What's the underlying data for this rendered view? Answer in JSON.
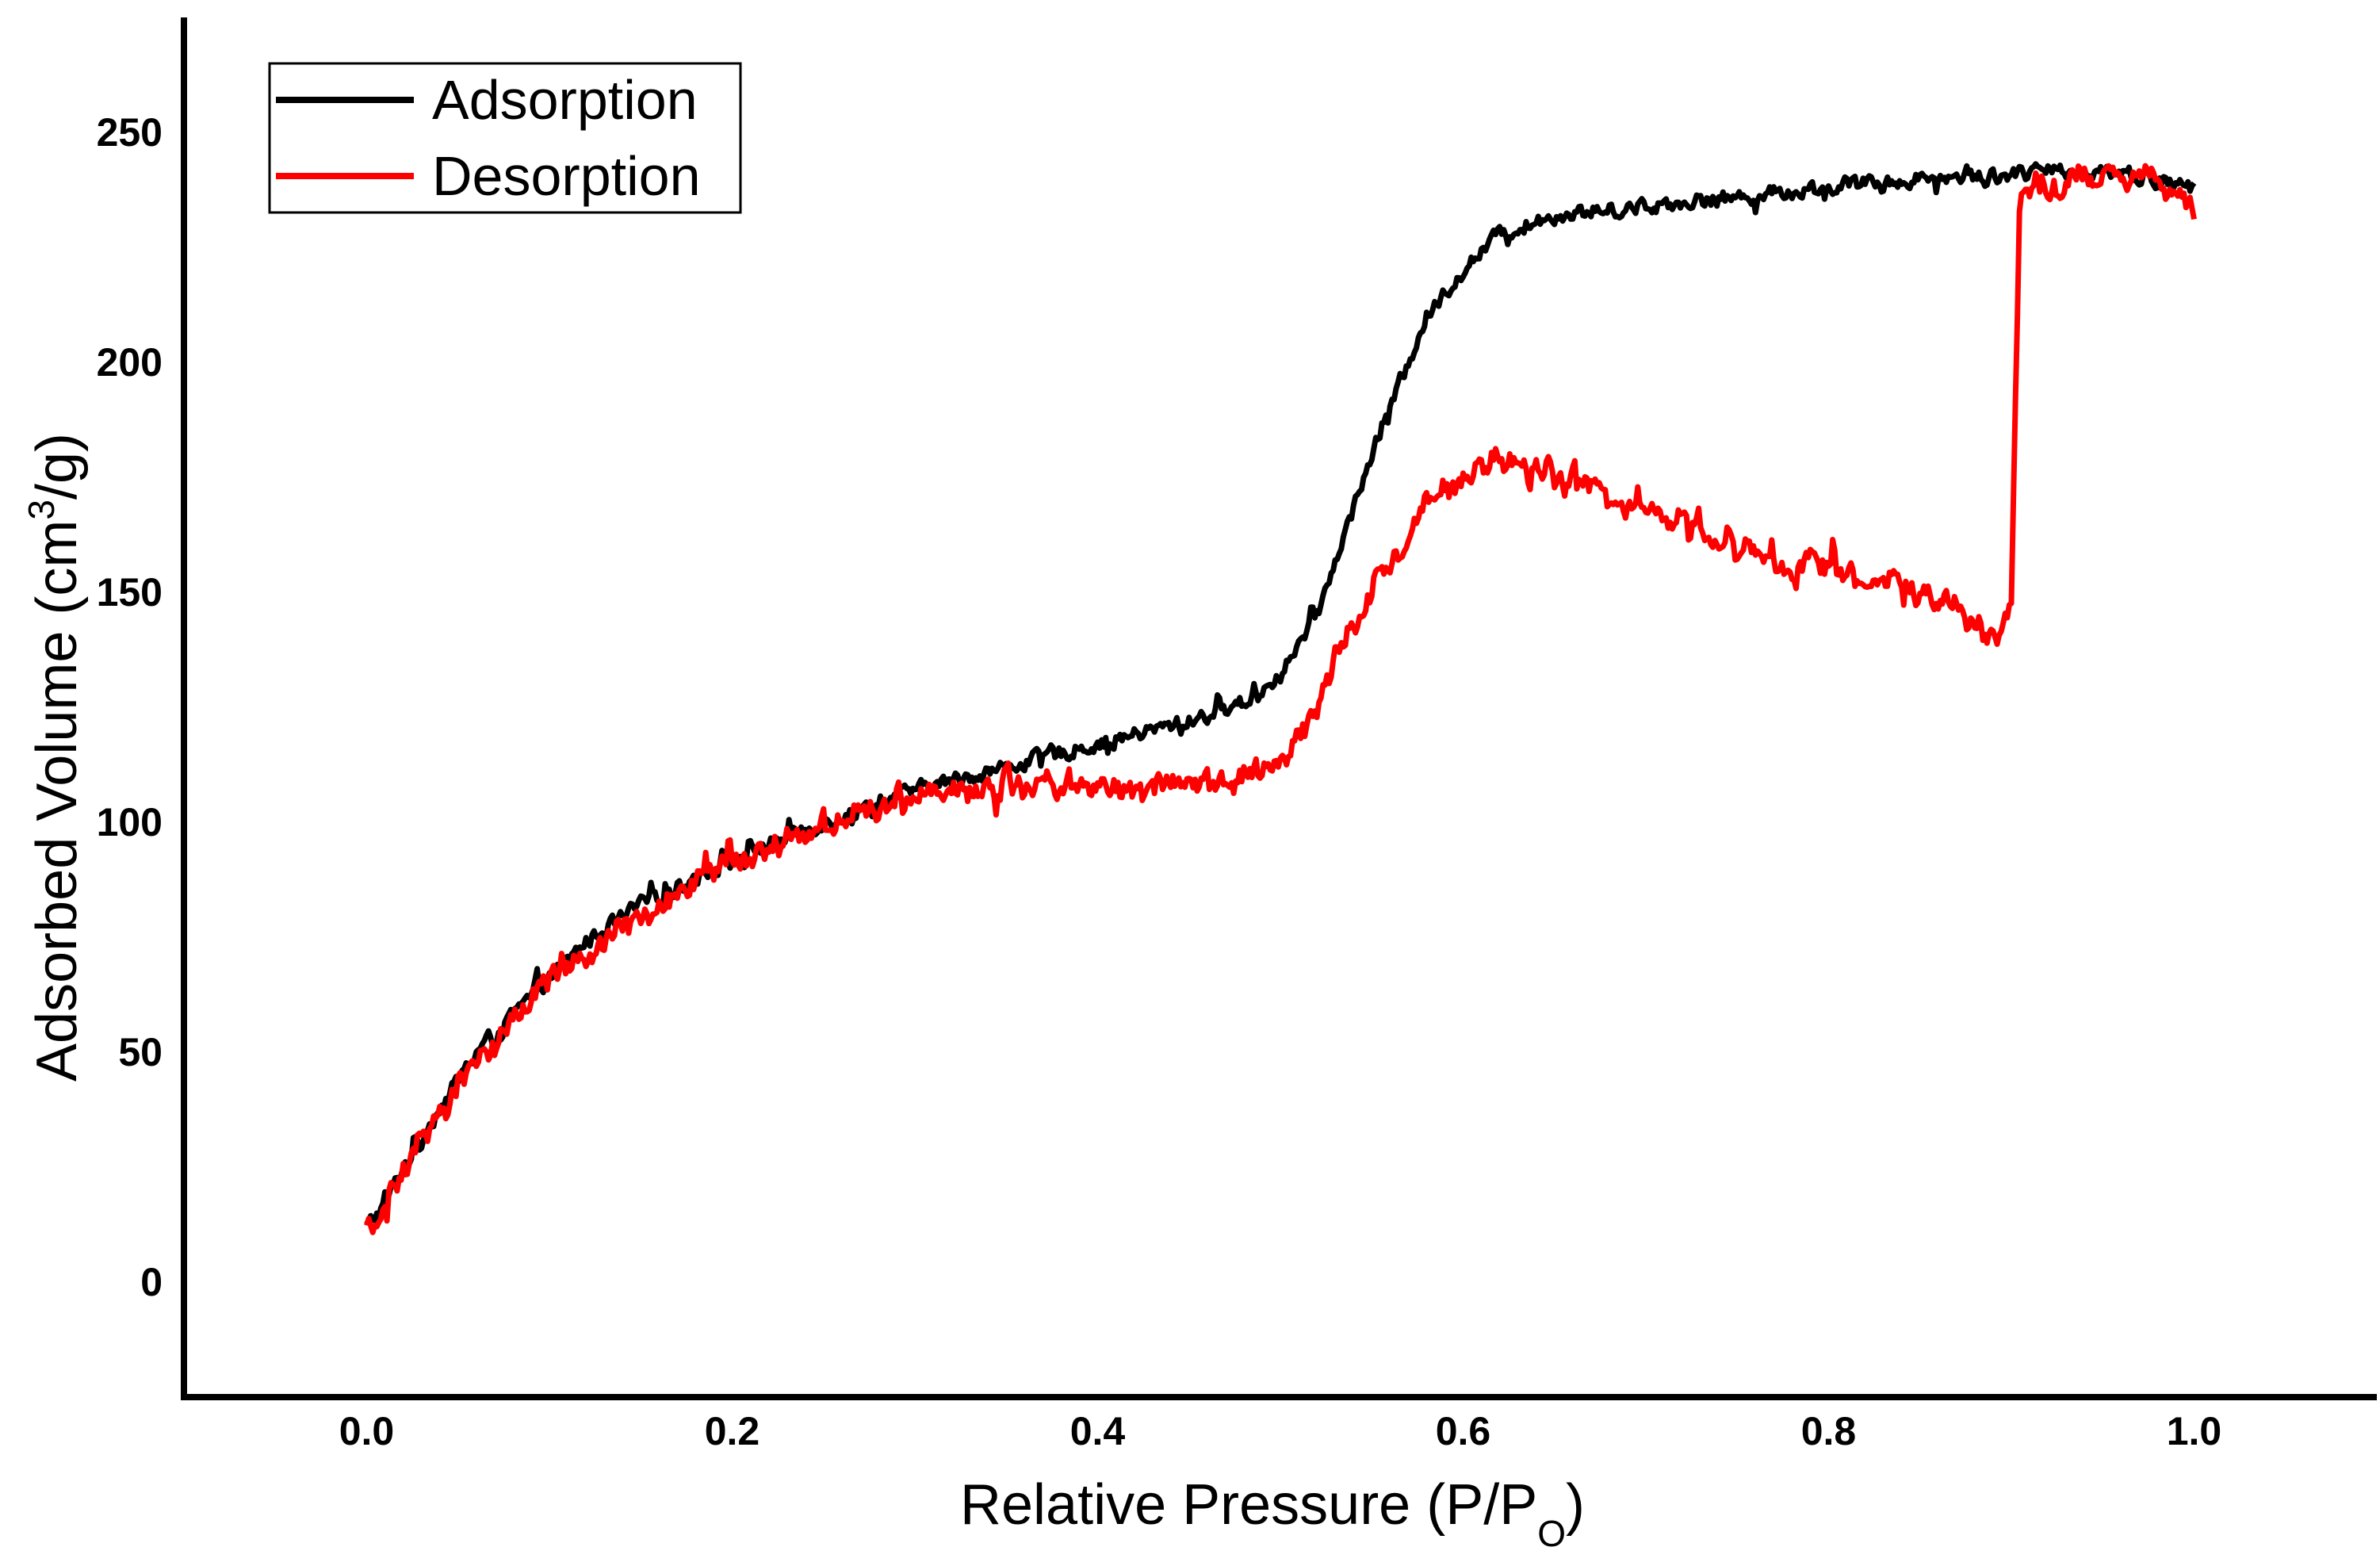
{
  "chart_data": {
    "type": "line",
    "title": "",
    "xlabel": {
      "main": "Relative Pressure (P/P",
      "sub": "O",
      "end": ")"
    },
    "ylabel": {
      "main": "Adsorbed Volume (cm",
      "sup": "3",
      "end": "/g)"
    },
    "xlim": [
      -0.1,
      1.1
    ],
    "ylim": [
      -25,
      275
    ],
    "xticks": [
      "0.0",
      "0.2",
      "0.4",
      "0.6",
      "0.8",
      "1.0"
    ],
    "yticks": [
      "0",
      "50",
      "100",
      "150",
      "200",
      "250"
    ],
    "grid": false,
    "legend_position": "top-left",
    "series": [
      {
        "name": "Adsorption",
        "color": "#000000",
        "x": [
          0.0,
          0.01,
          0.02,
          0.04,
          0.06,
          0.08,
          0.1,
          0.12,
          0.15,
          0.2,
          0.25,
          0.3,
          0.35,
          0.4,
          0.45,
          0.48,
          0.5,
          0.52,
          0.55,
          0.58,
          0.6,
          0.62,
          0.65,
          0.7,
          0.75,
          0.8,
          0.85,
          0.9,
          0.95,
          1.0
        ],
        "y": [
          12,
          17,
          25,
          38,
          50,
          58,
          66,
          74,
          82,
          92,
          100,
          107,
          112,
          117,
          122,
          126,
          132,
          145,
          180,
          210,
          220,
          228,
          232,
          234,
          236,
          238,
          240,
          241,
          242,
          238
        ]
      },
      {
        "name": "Desorption",
        "color": "#ff0000",
        "x": [
          1.0,
          0.98,
          0.95,
          0.92,
          0.905,
          0.9,
          0.895,
          0.89,
          0.87,
          0.85,
          0.8,
          0.75,
          0.7,
          0.65,
          0.62,
          0.6,
          0.58,
          0.55,
          0.53,
          0.52,
          0.5,
          0.48,
          0.45,
          0.4,
          0.35,
          0.3,
          0.25,
          0.2,
          0.15,
          0.1,
          0.08,
          0.06,
          0.04,
          0.02,
          0.01,
          0.0
        ],
        "y": [
          233,
          240,
          241,
          238,
          238,
          149,
          142,
          140,
          146,
          150,
          155,
          160,
          168,
          176,
          180,
          175,
          170,
          150,
          135,
          125,
          113,
          110,
          108,
          107,
          108,
          106,
          99,
          91,
          80,
          66,
          57,
          48,
          36,
          24,
          16,
          12
        ]
      }
    ]
  }
}
